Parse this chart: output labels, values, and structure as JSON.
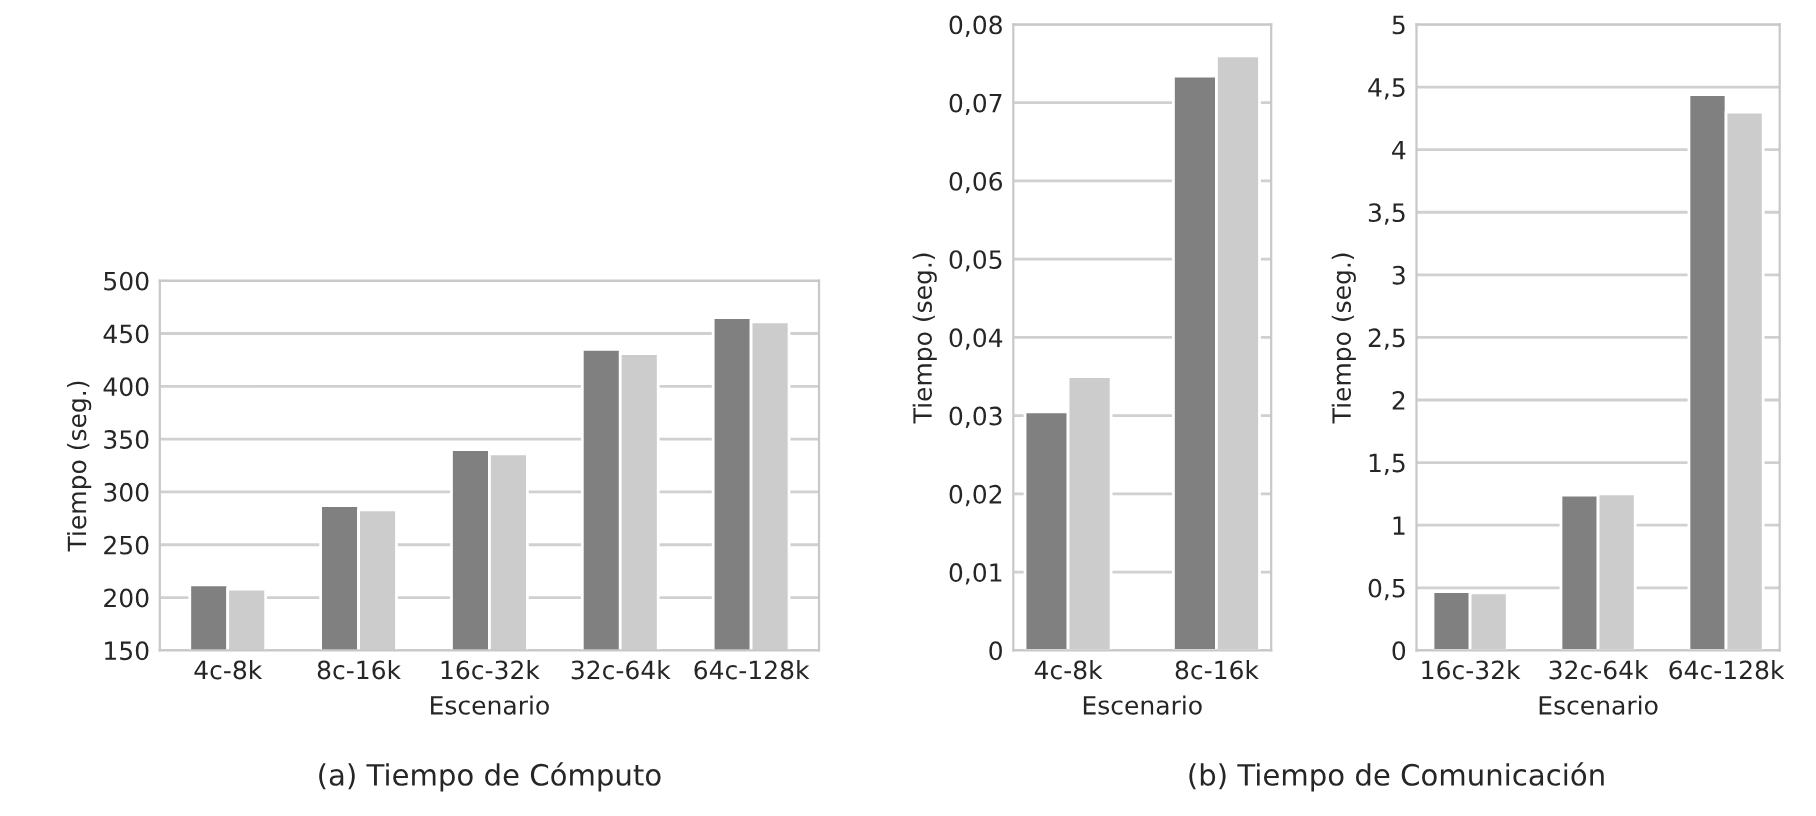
{
  "chart_data": [
    {
      "type": "bar",
      "title": "(a) Tiempo de Cómputo",
      "xlabel": "Escenario",
      "ylabel": "Tiempo (seg.)",
      "categories": [
        "4c-8k",
        "8c-16k",
        "16c-32k",
        "32c-64k",
        "64c-128k"
      ],
      "series": [
        {
          "color": "#808080",
          "values": [
            212,
            287,
            340,
            435,
            465
          ]
        },
        {
          "color": "#cccccc",
          "values": [
            208,
            283,
            336,
            431,
            461
          ]
        }
      ],
      "ylim": [
        150,
        500
      ],
      "yticks": [
        150,
        200,
        250,
        300,
        350,
        400,
        450,
        500
      ],
      "grid": "y"
    },
    {
      "type": "bar",
      "title": "(b) Tiempo de Comunicación",
      "xlabel": "Escenario",
      "ylabel": "Tiempo (seg.)",
      "categories": [
        "4c-8k",
        "8c-16k"
      ],
      "series": [
        {
          "color": "#808080",
          "values": [
            0.0305,
            0.0734
          ]
        },
        {
          "color": "#cccccc",
          "values": [
            0.035,
            0.076
          ]
        }
      ],
      "ylim": [
        0,
        0.08
      ],
      "yticks": [
        0,
        {
          "value": 0.01,
          "label": "0,01"
        },
        {
          "value": 0.02,
          "label": "0,02"
        },
        {
          "value": 0.03,
          "label": "0,03"
        },
        {
          "value": 0.04,
          "label": "0,04"
        },
        {
          "value": 0.05,
          "label": "0,05"
        },
        {
          "value": 0.06,
          "label": "0,06"
        },
        {
          "value": 0.07,
          "label": "0,07"
        },
        {
          "value": 0.08,
          "label": "0,08"
        }
      ],
      "grid": "y"
    },
    {
      "type": "bar",
      "xlabel": "Escenario",
      "ylabel": "Tiempo (seg.)",
      "categories": [
        "16c-32k",
        "32c-64k",
        "64c-128k"
      ],
      "series": [
        {
          "color": "#808080",
          "values": [
            0.47,
            1.24,
            4.44
          ]
        },
        {
          "color": "#cccccc",
          "values": [
            0.46,
            1.25,
            4.3
          ]
        }
      ],
      "ylim": [
        0,
        5
      ],
      "yticks": [
        0,
        {
          "value": 0.5,
          "label": "0,5"
        },
        1,
        {
          "value": 1.5,
          "label": "1,5"
        },
        2,
        {
          "value": 2.5,
          "label": "2,5"
        },
        3,
        {
          "value": 3.5,
          "label": "3,5"
        },
        4,
        {
          "value": 4.5,
          "label": "4,5"
        },
        5
      ],
      "grid": "y"
    }
  ]
}
